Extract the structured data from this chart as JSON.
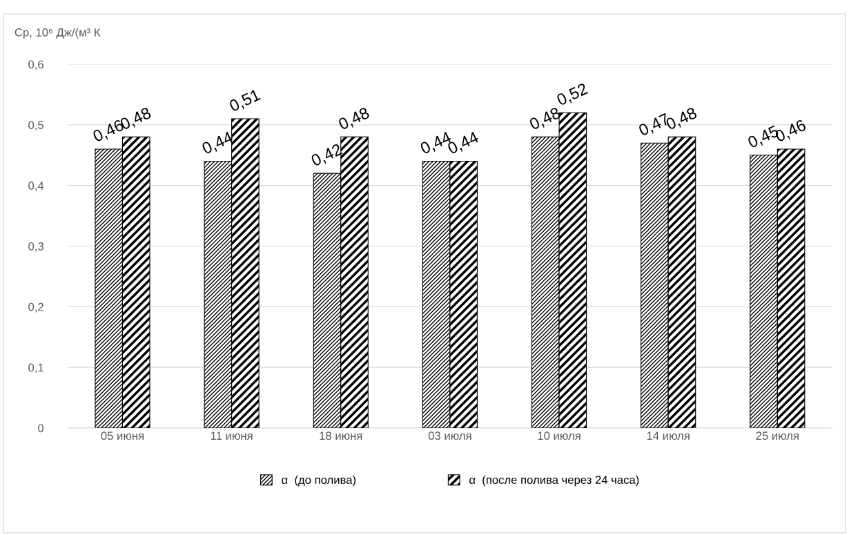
{
  "chart_data": {
    "type": "bar",
    "ylabel": "Cp, 10⁶ Дж/(м³ К",
    "categories": [
      "05 июня",
      "11 июня",
      "18 июня",
      "03 июля",
      "10 июля",
      "14 июля",
      "25 июля"
    ],
    "series": [
      {
        "name": "α  (до полива)",
        "color": "#000000",
        "values": [
          0.46,
          0.44,
          0.42,
          0.44,
          0.48,
          0.47,
          0.45
        ],
        "value_labels": [
          "0,46",
          "0,44",
          "0,42",
          "0,44",
          "0,48",
          "0,47",
          "0,45"
        ]
      },
      {
        "name": "α  (после полива через 24 часа)",
        "color": "#000000",
        "values": [
          0.48,
          0.51,
          0.48,
          0.44,
          0.52,
          0.48,
          0.46
        ],
        "value_labels": [
          "0,48",
          "0,51",
          "0,48",
          "0,44",
          "0,52",
          "0,48",
          "0,46"
        ]
      }
    ],
    "ylim": [
      0,
      0.6
    ],
    "yticks": [
      0,
      {
        "value": 0.1,
        "label": "0,1"
      },
      {
        "value": 0.2,
        "label": "0,2"
      },
      {
        "value": 0.3,
        "label": "0,3"
      },
      {
        "value": 0.4,
        "label": "0,4"
      },
      {
        "value": 0.5,
        "label": "0,5"
      },
      {
        "value": 0.6,
        "label": "0,6"
      }
    ],
    "grid": "y",
    "legend": "bottom"
  }
}
